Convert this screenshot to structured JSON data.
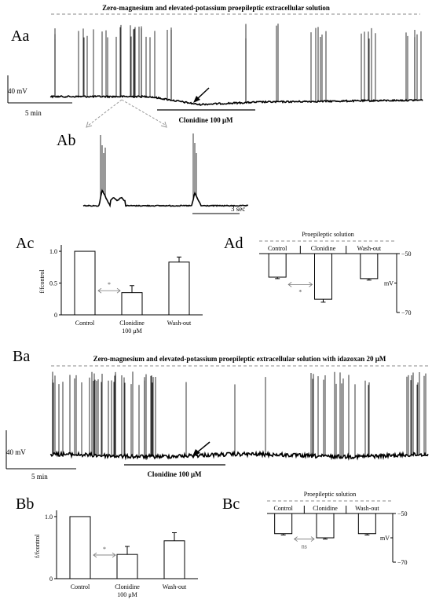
{
  "panels": {
    "Aa": "Aa",
    "Ab": "Ab",
    "Ac": "Ac",
    "Ad": "Ad",
    "Ba": "Ba",
    "Bb": "Bb",
    "Bc": "Bc"
  },
  "traceA": {
    "header": "Zero-magnesium and elevated-potassium proepileptic extracellular solution",
    "voltage_scale": "40 mV",
    "time_scale": "5 min",
    "drug_label": "Clonidine 100 μM"
  },
  "traceAb": {
    "time_scale": "3 sec"
  },
  "traceB": {
    "header": "Zero-magnesium and elevated-potassium proepileptic extracellular solution with idazoxan 20 μM",
    "voltage_scale": "40 mV",
    "time_scale": "5 min",
    "drug_label": "Clonidine 100 μM"
  },
  "colors": {
    "ink": "#000000",
    "dashed": "#888888",
    "arrow_gray": "#999999"
  },
  "chart_data": [
    {
      "id": "Ac",
      "type": "bar",
      "categories": [
        "Control",
        "Clonidine 100 μM",
        "Wash-out"
      ],
      "category_lines": [
        [
          "Control"
        ],
        [
          "Clonidine",
          "100 μM"
        ],
        [
          "Wash-out"
        ]
      ],
      "values": [
        1.0,
        0.35,
        0.83
      ],
      "errors": [
        0,
        0.11,
        0.08
      ],
      "ylabel": "f/fcontrol",
      "yticks": [
        "0",
        "0.5",
        "1.0"
      ],
      "ylim": [
        0,
        1.05
      ],
      "significance": "*"
    },
    {
      "id": "Ad",
      "type": "bar",
      "title": "Proepileptic solution",
      "categories": [
        "Control",
        "Clonidine",
        "Wash-out"
      ],
      "values": [
        -58.0,
        -65.5,
        -58.5
      ],
      "errors": [
        0.5,
        1.0,
        0.5
      ],
      "ylabel": "mV",
      "yticks": [
        "−50",
        "−70"
      ],
      "ylim": [
        -70,
        -50
      ],
      "significance": "*"
    },
    {
      "id": "Bb",
      "type": "bar",
      "categories": [
        "Control",
        "Clonidine 100 μM",
        "Wash-out"
      ],
      "category_lines": [
        [
          "Control"
        ],
        [
          "Clonidine",
          "100 μM"
        ],
        [
          "Wash-out"
        ]
      ],
      "values": [
        1.0,
        0.39,
        0.61
      ],
      "errors": [
        0,
        0.13,
        0.13
      ],
      "ylabel": "f/fcontrol",
      "yticks": [
        "0",
        "1.0"
      ],
      "ylim": [
        0,
        1.05
      ],
      "significance": "*"
    },
    {
      "id": "Bc",
      "type": "bar",
      "title": "Proepileptic solution",
      "categories": [
        "Control",
        "Clonidine",
        "Wash-out"
      ],
      "values": [
        -58.3,
        -60.0,
        -58.3
      ],
      "errors": [
        0.5,
        0.5,
        0.5
      ],
      "ylabel": "mV",
      "yticks": [
        "−50",
        "−70"
      ],
      "ylim": [
        -70,
        -50
      ],
      "significance": "ns"
    }
  ]
}
